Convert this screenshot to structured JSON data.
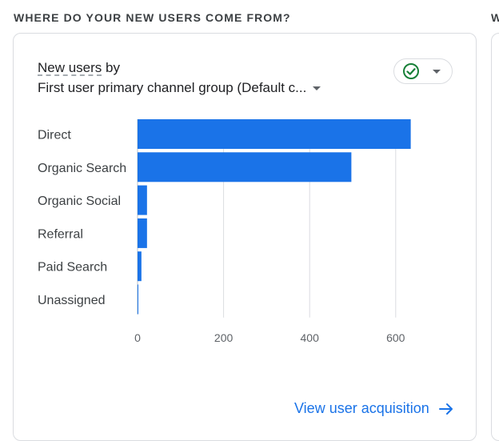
{
  "section": {
    "title": "WHERE DO YOUR NEW USERS COME FROM?",
    "next_title_fragment": "W"
  },
  "card": {
    "metric_label": "New users",
    "metric_suffix": " by",
    "dimension_label": "First user primary channel group (Default c...",
    "status_icon": "check-circle-icon",
    "link_label": "View user acquisition"
  },
  "colors": {
    "bar": "#1a73e8",
    "accent": "#1a73e8",
    "check": "#188038"
  },
  "chart_data": {
    "type": "bar",
    "orientation": "horizontal",
    "categories": [
      "Direct",
      "Organic Search",
      "Organic Social",
      "Referral",
      "Paid Search",
      "Unassigned"
    ],
    "values": [
      635,
      497,
      22,
      22,
      9,
      1
    ],
    "xlim": [
      0,
      620
    ],
    "xticks": [
      0,
      200,
      400,
      600
    ],
    "grid": true
  }
}
